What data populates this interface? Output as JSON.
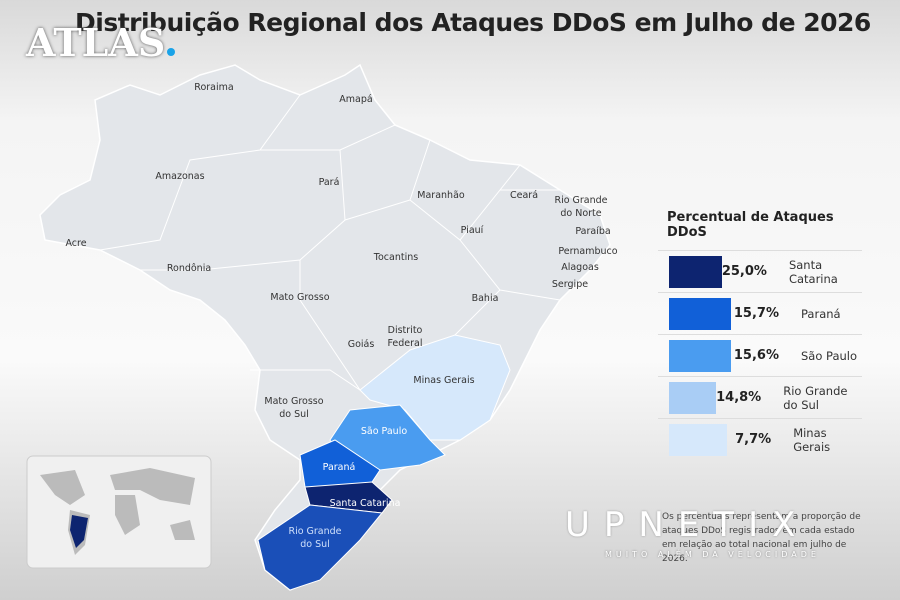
{
  "header": {
    "title": "Distribuição Regional dos Ataques DDoS em Julho de 2026",
    "brand": "ATLAS"
  },
  "map": {
    "labels": [
      [
        "Roraima"
      ],
      [
        "Amapá"
      ],
      [
        "Amazonas"
      ],
      [
        "Pará"
      ],
      [
        "Maranhão"
      ],
      [
        "Ceará"
      ],
      [
        "Rio Grande",
        "do Norte"
      ],
      [
        "Paraíba"
      ],
      [
        "Pernambuco"
      ],
      [
        "Alagoas"
      ],
      [
        "Sergipe"
      ],
      [
        "Piauí"
      ],
      [
        "Acre"
      ],
      [
        "Rondônia"
      ],
      [
        "Tocantins"
      ],
      [
        "Bahia"
      ],
      [
        "Mato Grosso"
      ],
      [
        "Distrito",
        "Federal"
      ],
      [
        "Goiás"
      ],
      [
        "Minas Gerais"
      ],
      [
        "Mato Grosso",
        "do Sul"
      ],
      [
        "São Paulo"
      ],
      [
        "Paraná"
      ],
      [
        "Santa Catarina"
      ],
      [
        "Rio Grande",
        "do Sul"
      ]
    ]
  },
  "legend": {
    "title": "Percentual de Ataques DDoS",
    "items": [
      {
        "value": "25,0%",
        "state": "Santa Catarina",
        "color": "#0d2470"
      },
      {
        "value": "15,7%",
        "state": "Paraná",
        "color": "#1160d8"
      },
      {
        "value": "15,6%",
        "state": "São Paulo",
        "color": "#4a9cf0"
      },
      {
        "value": "14,8%",
        "state": "Rio Grande do Sul",
        "color": "#a9cdf5"
      },
      {
        "value": "7,7%",
        "state": "Minas Gerais",
        "color": "#d6e8fb"
      }
    ]
  },
  "footnote": "Os percentuais representam a proporção de ataques DDoS registrados em cada estado em relação ao total nacional em julho de 2026.",
  "watermark": {
    "name": "UPNETIX",
    "tagline": "MUITO ALÉM DA VELOCIDADE"
  }
}
